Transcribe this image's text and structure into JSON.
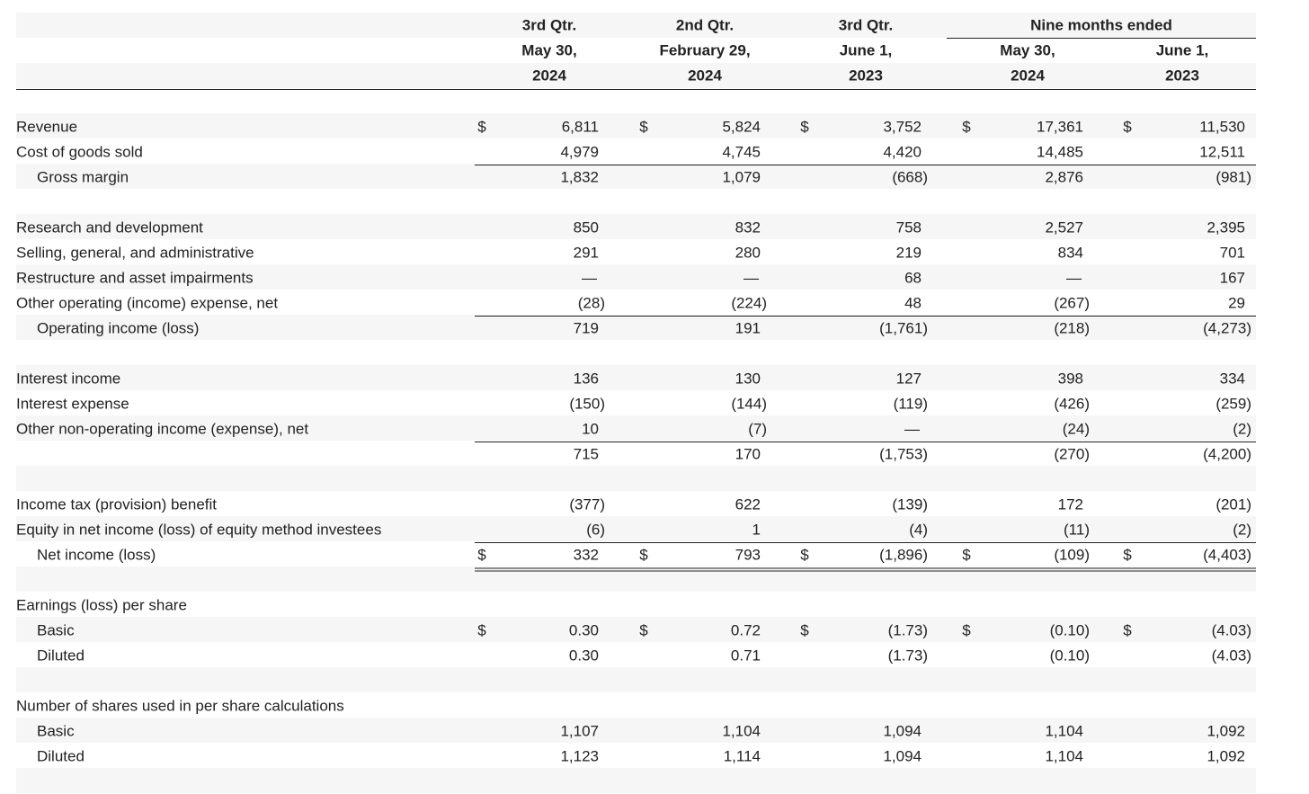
{
  "table": {
    "group_header": "Nine months ended",
    "columns": [
      [
        "3rd Qtr.",
        "May 30,",
        "2024"
      ],
      [
        "2nd Qtr.",
        "February 29,",
        "2024"
      ],
      [
        "3rd Qtr.",
        "June 1,",
        "2023"
      ],
      [
        "May 30,",
        "2024"
      ],
      [
        "June 1,",
        "2023"
      ]
    ],
    "currency": "$",
    "rows": [
      {
        "label": "Revenue",
        "dollar": true,
        "cells": [
          "6,811",
          "5,824",
          "3,752",
          "17,361",
          "11,530"
        ]
      },
      {
        "label": "Cost of goods sold",
        "cells": [
          "4,979",
          "4,745",
          "4,420",
          "14,485",
          "12,511"
        ]
      },
      {
        "label": "Gross margin",
        "indent": true,
        "rule_above": true,
        "cells": [
          "1,832",
          "1,079",
          "(668)",
          "2,876",
          "(981)"
        ]
      },
      {
        "label": "Research and development",
        "gap_before": true,
        "cells": [
          "850",
          "832",
          "758",
          "2,527",
          "2,395"
        ]
      },
      {
        "label": "Selling, general, and administrative",
        "cells": [
          "291",
          "280",
          "219",
          "834",
          "701"
        ]
      },
      {
        "label": "Restructure and asset impairments",
        "cells": [
          "—",
          "—",
          "68",
          "—",
          "167"
        ]
      },
      {
        "label": "Other operating (income) expense, net",
        "cells": [
          "(28)",
          "(224)",
          "48",
          "(267)",
          "29"
        ]
      },
      {
        "label": "Operating income (loss)",
        "indent": true,
        "rule_above": true,
        "cells": [
          "719",
          "191",
          "(1,761)",
          "(218)",
          "(4,273)"
        ]
      },
      {
        "label": "Interest income",
        "gap_before": true,
        "cells": [
          "136",
          "130",
          "127",
          "398",
          "334"
        ]
      },
      {
        "label": "Interest expense",
        "cells": [
          "(150)",
          "(144)",
          "(119)",
          "(426)",
          "(259)"
        ]
      },
      {
        "label": "Other non-operating income (expense), net",
        "cells": [
          "10",
          "(7)",
          "—",
          "(24)",
          "(2)"
        ]
      },
      {
        "rule_above": true,
        "cells": [
          "715",
          "170",
          "(1,753)",
          "(270)",
          "(4,200)"
        ]
      },
      {
        "label": "Income tax (provision) benefit",
        "gap_before": true,
        "cells": [
          "(377)",
          "622",
          "(139)",
          "172",
          "(201)"
        ]
      },
      {
        "label": "Equity in net income (loss) of equity method investees",
        "cells": [
          "(6)",
          "1",
          "(4)",
          "(11)",
          "(2)"
        ]
      },
      {
        "label": "Net income (loss)",
        "indent": true,
        "rule_above": true,
        "double_rule_below": true,
        "dollar": true,
        "cells": [
          "332",
          "793",
          "(1,896)",
          "(109)",
          "(4,403)"
        ]
      },
      {
        "label": "Earnings (loss) per share",
        "gap_before": true
      },
      {
        "label": "Basic",
        "indent": true,
        "dollar": true,
        "cells": [
          "0.30",
          "0.72",
          "(1.73)",
          "(0.10)",
          "(4.03)"
        ]
      },
      {
        "label": "Diluted",
        "indent": true,
        "cells": [
          "0.30",
          "0.71",
          "(1.73)",
          "(0.10)",
          "(4.03)"
        ]
      },
      {
        "label": "Number of shares used in per share calculations",
        "gap_before": true
      },
      {
        "label": "Basic",
        "indent": true,
        "cells": [
          "1,107",
          "1,104",
          "1,094",
          "1,104",
          "1,092"
        ]
      },
      {
        "label": "Diluted",
        "indent": true,
        "cells": [
          "1,123",
          "1,114",
          "1,094",
          "1,104",
          "1,092"
        ]
      }
    ]
  }
}
